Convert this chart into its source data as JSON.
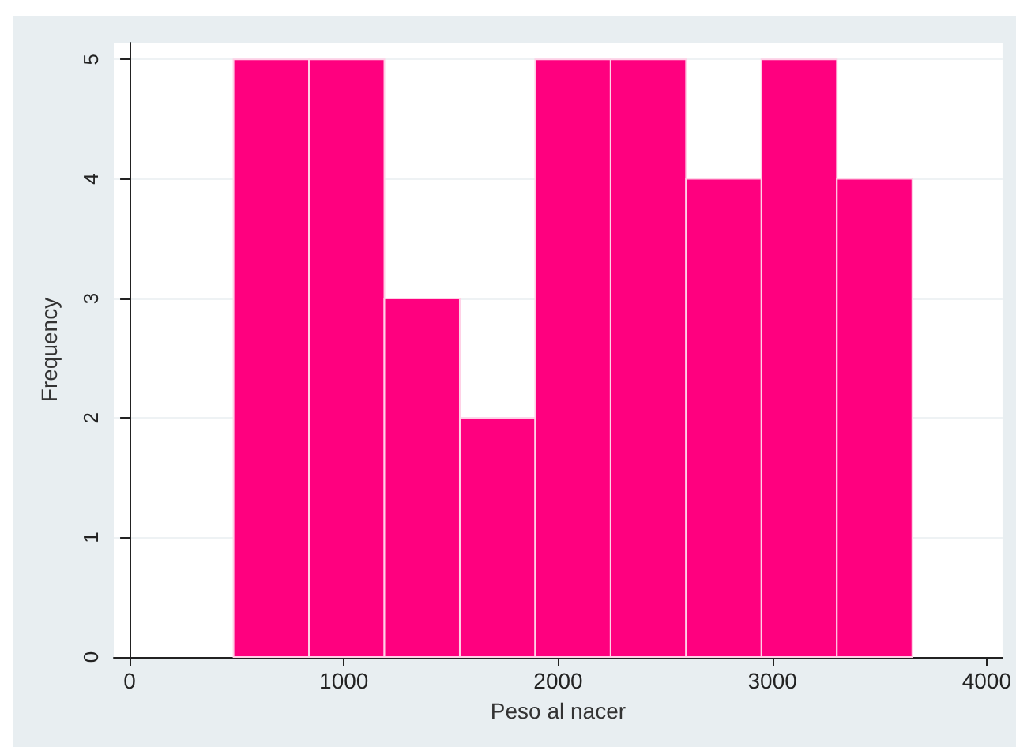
{
  "chart_data": {
    "type": "histogram",
    "xlabel": "Peso al nacer",
    "ylabel": "Frequency",
    "bins": [
      485,
      837,
      1189,
      1541,
      1893,
      2245,
      2597,
      2949,
      3301,
      3653
    ],
    "values": [
      5,
      5,
      3,
      2,
      5,
      5,
      4,
      5,
      4
    ],
    "color": "#ff007f",
    "xlim": [
      -74,
      4074
    ],
    "xticks": [
      0,
      1000,
      2000,
      3000,
      4000
    ],
    "ylim": [
      0,
      5.14
    ],
    "yticks": [
      0,
      1,
      2,
      3,
      4,
      5
    ],
    "grid": "y"
  }
}
